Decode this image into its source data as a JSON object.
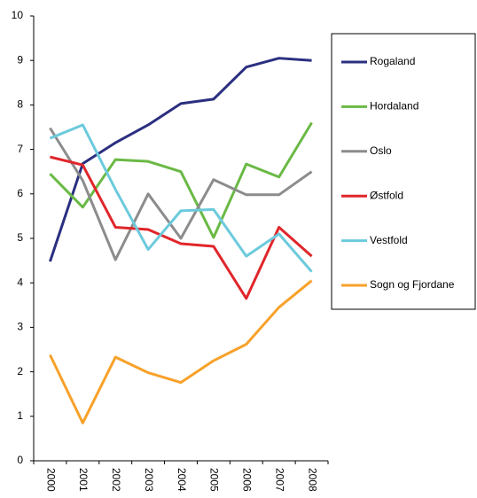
{
  "chart_data": {
    "type": "line",
    "categories": [
      "2000",
      "2001",
      "2002",
      "2003",
      "2004",
      "2005",
      "2006",
      "2007",
      "2008"
    ],
    "series": [
      {
        "name": "Rogaland",
        "color": "#2b2f80",
        "values": [
          4.48,
          6.68,
          7.15,
          7.55,
          8.03,
          8.13,
          8.85,
          9.05,
          9.0
        ]
      },
      {
        "name": "Hordaland",
        "color": "#6ab945",
        "values": [
          6.45,
          5.7,
          6.77,
          6.73,
          6.5,
          5.02,
          6.67,
          6.38,
          7.6
        ]
      },
      {
        "name": "Oslo",
        "color": "#8c8c8c",
        "values": [
          7.48,
          6.3,
          4.52,
          6.0,
          5.0,
          6.32,
          5.98,
          5.98,
          6.5
        ]
      },
      {
        "name": "Østfold",
        "color": "#e0262b",
        "values": [
          6.83,
          6.65,
          5.25,
          5.2,
          4.88,
          4.82,
          3.65,
          5.25,
          4.6
        ]
      },
      {
        "name": "Vestfold",
        "color": "#6ccadc",
        "values": [
          7.25,
          7.55,
          6.1,
          4.75,
          5.62,
          5.65,
          4.6,
          5.1,
          4.25
        ]
      },
      {
        "name": "Sogn og Fjordane",
        "color": "#f7a12a",
        "values": [
          2.38,
          0.85,
          2.33,
          1.98,
          1.76,
          2.25,
          2.62,
          3.45,
          4.05
        ]
      }
    ],
    "ylim": [
      0,
      10
    ],
    "yticks": [
      0,
      1,
      2,
      3,
      4,
      5,
      6,
      7,
      8,
      9,
      10
    ],
    "grid": false,
    "legend": "right"
  }
}
